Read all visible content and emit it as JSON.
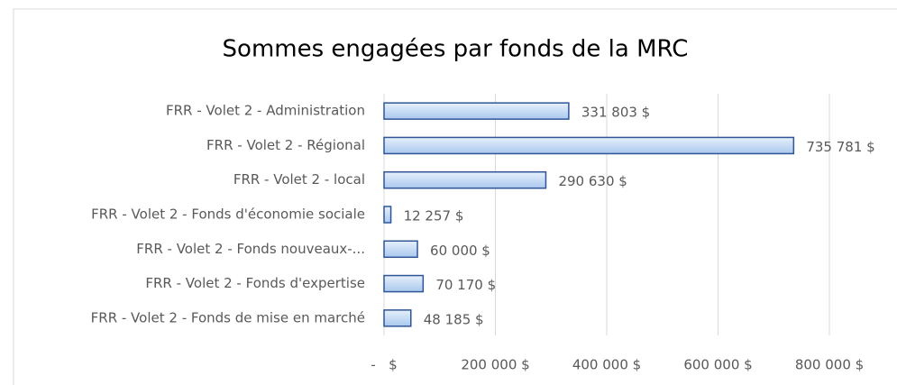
{
  "chart_data": {
    "type": "hbar",
    "title": "Sommes engagées par fonds de la MRC",
    "categories": [
      "FRR - Volet 2 - Administration",
      "FRR - Volet 2 - Régional",
      "FRR - Volet 2 - local",
      "FRR - Volet 2 - Fonds d'économie sociale",
      "FRR - Volet 2 - Fonds nouveaux-...",
      "FRR - Volet 2 - Fonds d'expertise",
      "FRR - Volet 2 - Fonds de mise en marché"
    ],
    "values": [
      331803,
      735781,
      290630,
      12257,
      60000,
      70170,
      48185
    ],
    "value_labels": [
      "331 803 $",
      "735 781 $",
      "290 630 $",
      "12 257 $",
      "60 000 $",
      "70 170 $",
      "48 185 $"
    ],
    "color": "#c5dcf5",
    "xlim": [
      0,
      800000
    ],
    "xticks": [
      {
        "value": 0,
        "label": "-   $"
      },
      {
        "value": 200000,
        "label": "200 000 $"
      },
      {
        "value": 400000,
        "label": "400 000 $"
      },
      {
        "value": 600000,
        "label": "600 000 $"
      },
      {
        "value": 800000,
        "label": "800 000 $"
      }
    ],
    "grid": true
  }
}
